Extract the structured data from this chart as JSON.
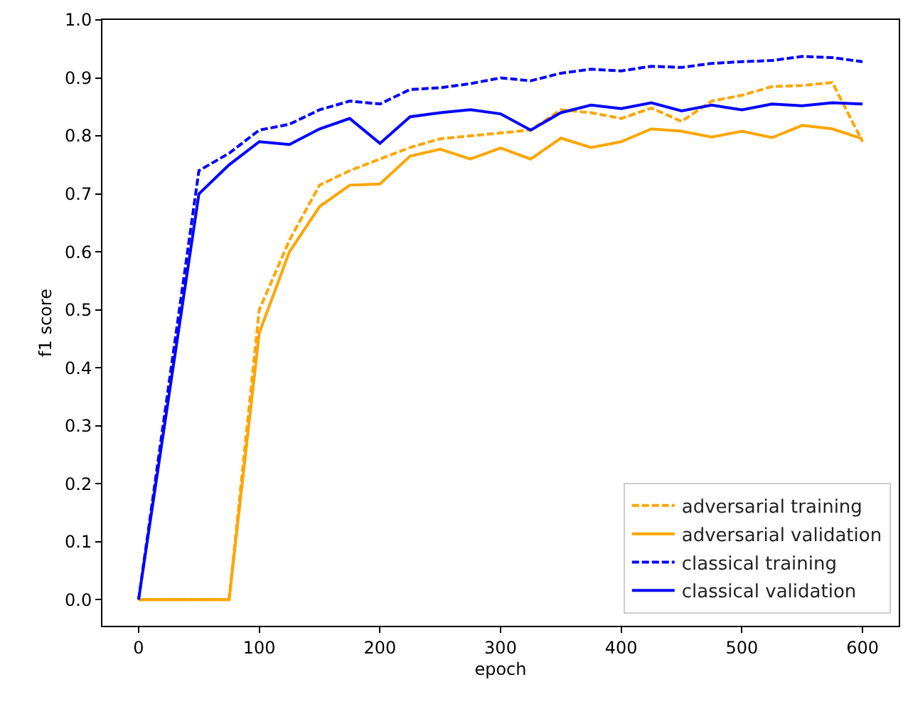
{
  "chart_data": {
    "type": "line",
    "xlabel": "epoch",
    "ylabel": "f1 score",
    "x": [
      0,
      50,
      75,
      100,
      125,
      150,
      175,
      200,
      225,
      250,
      275,
      300,
      325,
      350,
      375,
      400,
      425,
      450,
      475,
      500,
      525,
      550,
      575,
      600
    ],
    "series": [
      {
        "name": "adversarial training",
        "color": "#ffa500",
        "line_style": "dashed",
        "values": [
          0,
          0,
          0,
          0.5,
          0.62,
          0.715,
          0.74,
          0.76,
          0.78,
          0.795,
          0.8,
          0.805,
          0.81,
          0.845,
          0.84,
          0.83,
          0.848,
          0.825,
          0.86,
          0.87,
          0.885,
          0.887,
          0.892,
          0.79
        ]
      },
      {
        "name": "adversarial validation",
        "color": "#ffa500",
        "line_style": "solid",
        "values": [
          0,
          0,
          0,
          0.46,
          0.6,
          0.678,
          0.715,
          0.717,
          0.765,
          0.777,
          0.76,
          0.779,
          0.76,
          0.796,
          0.78,
          0.79,
          0.812,
          0.808,
          0.798,
          0.808,
          0.797,
          0.818,
          0.812,
          0.795
        ]
      },
      {
        "name": "classical training",
        "color": "#0000ff",
        "line_style": "dashed",
        "values": [
          0,
          0.74,
          0.77,
          0.81,
          0.82,
          0.845,
          0.86,
          0.855,
          0.88,
          0.883,
          0.89,
          0.9,
          0.895,
          0.908,
          0.915,
          0.912,
          0.92,
          0.918,
          0.925,
          0.928,
          0.93,
          0.937,
          0.935,
          0.928
        ]
      },
      {
        "name": "classical validation",
        "color": "#0000ff",
        "line_style": "solid",
        "values": [
          0,
          0.7,
          0.75,
          0.79,
          0.785,
          0.812,
          0.83,
          0.787,
          0.833,
          0.84,
          0.845,
          0.838,
          0.81,
          0.84,
          0.853,
          0.847,
          0.857,
          0.843,
          0.853,
          0.845,
          0.855,
          0.852,
          0.857,
          0.855
        ]
      }
    ],
    "xlim": [
      -30,
      630
    ],
    "xticks": [
      0,
      100,
      200,
      300,
      400,
      500,
      600
    ],
    "ylim": [
      -0.045,
      1.0
    ],
    "yticks": [
      {
        "value": 0,
        "label": "0.0"
      },
      {
        "value": 0.1,
        "label": "0.1"
      },
      {
        "value": 0.2,
        "label": "0.2"
      },
      {
        "value": 0.3,
        "label": "0.3"
      },
      {
        "value": 0.4,
        "label": "0.4"
      },
      {
        "value": 0.5,
        "label": "0.5"
      },
      {
        "value": 0.6,
        "label": "0.6"
      },
      {
        "value": 0.7,
        "label": "0.7"
      },
      {
        "value": 0.8,
        "label": "0.8"
      },
      {
        "value": 0.9,
        "label": "0.9"
      },
      {
        "value": 1.0,
        "label": "1.0"
      }
    ],
    "legend": "bottom right"
  }
}
